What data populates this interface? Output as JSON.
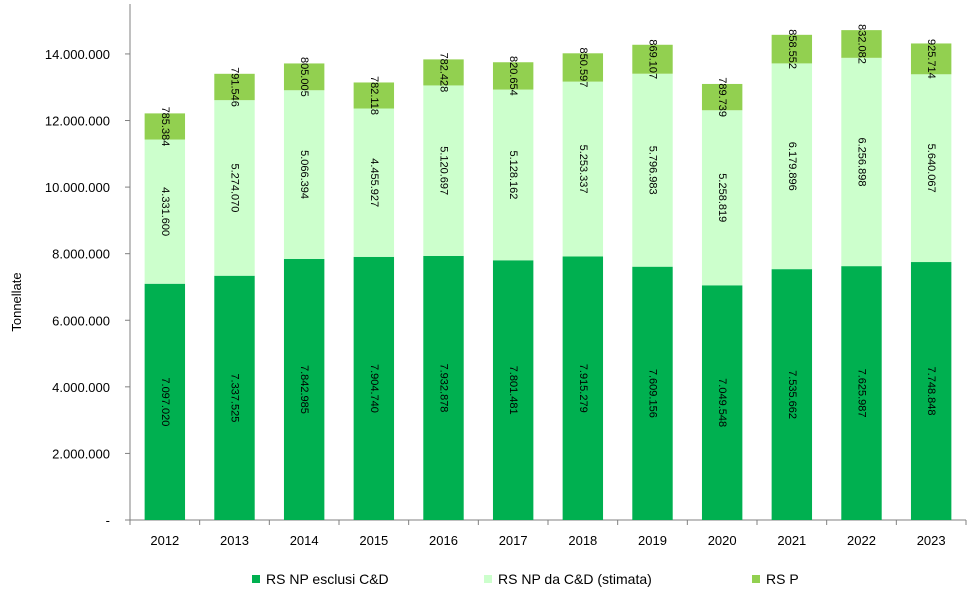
{
  "chart_data": {
    "type": "bar",
    "stacked": true,
    "title": "",
    "xlabel": "",
    "ylabel": "Tonnellate",
    "ylim": [
      0,
      15500000
    ],
    "yticks": [
      0,
      2000000,
      4000000,
      6000000,
      8000000,
      10000000,
      12000000,
      14000000
    ],
    "ytick_labels": [
      "-",
      "2.000.000",
      "4.000.000",
      "6.000.000",
      "8.000.000",
      "10.000.000",
      "12.000.000",
      "14.000.000"
    ],
    "categories": [
      "2012",
      "2013",
      "2014",
      "2015",
      "2016",
      "2017",
      "2018",
      "2019",
      "2020",
      "2021",
      "2022",
      "2023"
    ],
    "legend_position": "bottom",
    "series": [
      {
        "name": "RS NP esclusi C&D",
        "color": "#00b050",
        "values": [
          7097020,
          7337525,
          7842985,
          7904740,
          7932878,
          7801481,
          7915279,
          7609156,
          7049548,
          7535662,
          7625987,
          7748848
        ],
        "labels": [
          "7.097.020",
          "7.337.525",
          "7.842.985",
          "7.904.740",
          "7.932.878",
          "7.801.481",
          "7.915.279",
          "7.609.156",
          "7.049.548",
          "7.535.662",
          "7.625.987",
          "7.748.848"
        ]
      },
      {
        "name": "RS NP da C&D (stimata)",
        "color": "#ccffcc",
        "values": [
          4331600,
          5274070,
          5066394,
          4455927,
          5120697,
          5128162,
          5253337,
          5796983,
          5258819,
          6179896,
          6256898,
          5640067
        ],
        "labels": [
          "4.331.600",
          "5.274.070",
          "5.066.394",
          "4.455.927",
          "5.120.697",
          "5.128.162",
          "5.253.337",
          "5.796.983",
          "5.258.819",
          "6.179.896",
          "6.256.898",
          "5.640.067"
        ]
      },
      {
        "name": "RS P",
        "color": "#92d050",
        "values": [
          785384,
          791546,
          805005,
          782118,
          782428,
          820654,
          850597,
          869107,
          789739,
          858552,
          832082,
          925714
        ],
        "labels": [
          "785.384",
          "791.546",
          "805.005",
          "782.118",
          "782.428",
          "820.654",
          "850.597",
          "869.107",
          "789.739",
          "858.552",
          "832.082",
          "925.714"
        ]
      }
    ]
  }
}
